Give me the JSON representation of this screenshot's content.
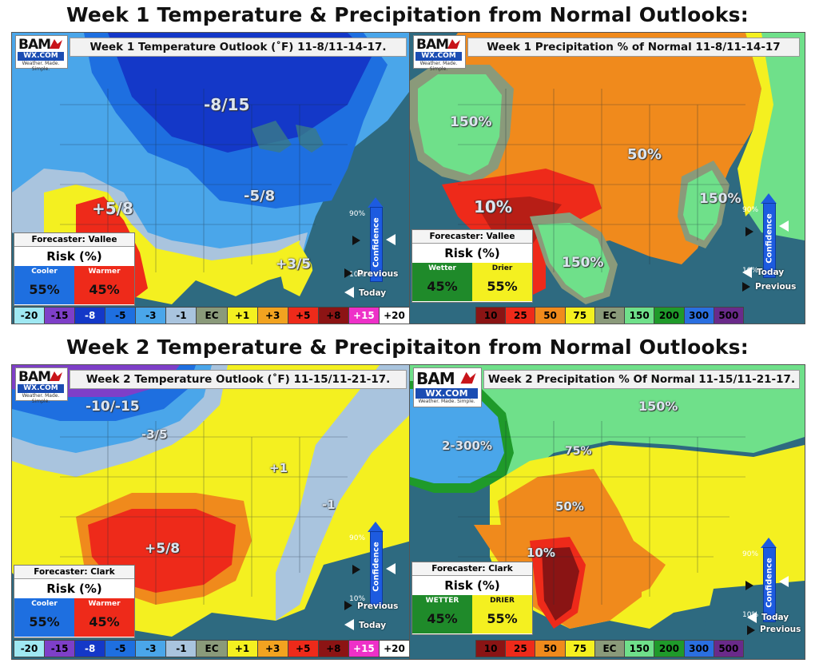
{
  "titles": {
    "week1": "Week 1 Temperature & Precipitation from Normal Outlooks:",
    "week2": "Week 2 Temperature & Precipitaiton from Normal Outlooks:"
  },
  "logo": {
    "name": "BAM",
    "site": "WX.COM",
    "tagline": "Weather. Made. Simple."
  },
  "confidence": {
    "label": "Confidence",
    "high": "90%",
    "low": "10%",
    "previous": "Previous",
    "today": "Today"
  },
  "panels": {
    "w1_temp": {
      "title": "Week 1 Temperature Outlook (˚F) 11-8/11-14-17.",
      "forecaster": "Forecaster: Vallee",
      "risk_title": "Risk (%)",
      "left_label": "Cooler",
      "left_value": "55%",
      "right_label": "Warmer",
      "right_value": "45%",
      "contours": [
        "-8/15",
        "-5/8",
        "+5/8",
        "+3/5"
      ]
    },
    "w1_precip": {
      "title": "Week 1 Precipitation % of Normal 11-8/11-14-17",
      "forecaster": "Forecaster: Vallee",
      "risk_title": "Risk (%)",
      "left_label": "Wetter",
      "left_value": "45%",
      "right_label": "Drier",
      "right_value": "55%",
      "contours": [
        "150%",
        "50%",
        "10%",
        "150%",
        "150%"
      ]
    },
    "w2_temp": {
      "title": "Week 2 Temperature Outlook (˚F) 11-15/11-21-17.",
      "forecaster": "Forecaster: Clark",
      "risk_title": "Risk (%)",
      "left_label": "Cooler",
      "left_value": "55%",
      "right_label": "Warmer",
      "right_value": "45%",
      "contours": [
        "-10/-15",
        "-3/5",
        "+1",
        "-1",
        "+5/8"
      ]
    },
    "w2_precip": {
      "title": "Week 2 Precipitation % Of Normal 11-15/11-21-17.",
      "forecaster": "Forecaster: Clark",
      "risk_title": "Risk (%)",
      "left_label": "WETTER",
      "left_value": "45%",
      "right_label": "DRIER",
      "right_value": "55%",
      "contours": [
        "150%",
        "2-300%",
        "75%",
        "50%",
        "10%"
      ]
    }
  },
  "temp_legend": [
    {
      "label": "-20",
      "color": "#9fe8f2",
      "text": "#000"
    },
    {
      "label": "-15",
      "color": "#7e3fc8",
      "text": "#000"
    },
    {
      "label": "-8",
      "color": "#1438c8",
      "text": "#fff"
    },
    {
      "label": "-5",
      "color": "#1e6fe0",
      "text": "#000"
    },
    {
      "label": "-3",
      "color": "#4aa6ea",
      "text": "#000"
    },
    {
      "label": "-1",
      "color": "#a9c4de",
      "text": "#000"
    },
    {
      "label": "EC",
      "color": "#8a9a7a",
      "text": "#000"
    },
    {
      "label": "+1",
      "color": "#f4f020",
      "text": "#000"
    },
    {
      "label": "+3",
      "color": "#f2a320",
      "text": "#000"
    },
    {
      "label": "+5",
      "color": "#ee2a1a",
      "text": "#000"
    },
    {
      "label": "+8",
      "color": "#8c1414",
      "text": "#000"
    },
    {
      "label": "+15",
      "color": "#ee30c8",
      "text": "#fff"
    },
    {
      "label": "+20",
      "color": "#ffffff",
      "text": "#000"
    }
  ],
  "precip_legend": [
    {
      "label": "10",
      "color": "#8a1414",
      "text": "#000"
    },
    {
      "label": "25",
      "color": "#ee2a1a",
      "text": "#000"
    },
    {
      "label": "50",
      "color": "#f08a1c",
      "text": "#000"
    },
    {
      "label": "75",
      "color": "#f4f020",
      "text": "#000"
    },
    {
      "label": "EC",
      "color": "#8a9a7a",
      "text": "#000"
    },
    {
      "label": "150",
      "color": "#6fe08a",
      "text": "#000"
    },
    {
      "label": "200",
      "color": "#1f9a2a",
      "text": "#000"
    },
    {
      "label": "300",
      "color": "#2a6fe0",
      "text": "#000"
    },
    {
      "label": "500",
      "color": "#6a2a8a",
      "text": "#000"
    }
  ]
}
